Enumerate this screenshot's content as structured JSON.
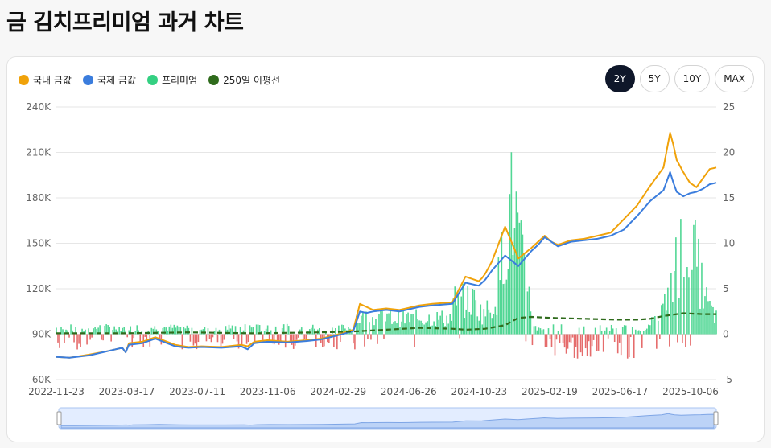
{
  "page": {
    "title": "금 김치프리미엄 과거 차트"
  },
  "legend": [
    {
      "label": "국내 금값",
      "color": "#f0a20a"
    },
    {
      "label": "국제 금값",
      "color": "#3b7ddd"
    },
    {
      "label": "프리미엄",
      "color": "#34d082"
    },
    {
      "label": "250일 이평선",
      "color": "#2f6b1c"
    }
  ],
  "range_buttons": [
    {
      "label": "2Y",
      "active": true
    },
    {
      "label": "5Y",
      "active": false
    },
    {
      "label": "10Y",
      "active": false
    },
    {
      "label": "MAX",
      "active": false
    }
  ],
  "chart_data": {
    "type": "line",
    "grid": true,
    "legend_position": "top-left",
    "y_left": {
      "ticks": [
        "240K",
        "210K",
        "180K",
        "150K",
        "120K",
        "90K",
        "60K"
      ],
      "range": [
        60000,
        240000
      ]
    },
    "y_right": {
      "ticks": [
        "25",
        "20",
        "15",
        "10",
        "5",
        "0",
        "-5"
      ],
      "range": [
        -5,
        25
      ]
    },
    "x_ticks": [
      "2022-11-23",
      "2023-03-17",
      "2023-07-11",
      "2023-11-06",
      "2024-02-29",
      "2024-06-26",
      "2024-10-23",
      "2025-02-19",
      "2025-06-17",
      "2025-10-06"
    ],
    "series": [
      {
        "name": "국내 금값",
        "color": "#f0a20a",
        "axis": "left",
        "x": [
          0,
          0.02,
          0.05,
          0.08,
          0.1,
          0.105,
          0.11,
          0.13,
          0.15,
          0.18,
          0.2,
          0.22,
          0.25,
          0.28,
          0.29,
          0.3,
          0.32,
          0.35,
          0.38,
          0.4,
          0.42,
          0.45,
          0.46,
          0.47,
          0.48,
          0.5,
          0.52,
          0.55,
          0.57,
          0.6,
          0.62,
          0.64,
          0.645,
          0.65,
          0.66,
          0.68,
          0.7,
          0.72,
          0.73,
          0.74,
          0.75,
          0.76,
          0.78,
          0.8,
          0.82,
          0.84,
          0.86,
          0.88,
          0.9,
          0.92,
          0.93,
          0.935,
          0.94,
          0.95,
          0.96,
          0.97,
          0.98,
          0.99,
          1.0
        ],
        "y": [
          75000,
          74500,
          76500,
          79000,
          81000,
          78000,
          84000,
          85000,
          88000,
          83000,
          81500,
          82000,
          81500,
          83000,
          82000,
          85000,
          86000,
          85000,
          86000,
          87000,
          89000,
          93000,
          110000,
          108000,
          106000,
          107000,
          106000,
          109000,
          110000,
          111000,
          128000,
          125000,
          127000,
          130000,
          138000,
          161000,
          140000,
          147000,
          151000,
          155000,
          151000,
          149000,
          152000,
          153000,
          155000,
          157000,
          166000,
          175000,
          188000,
          200000,
          223000,
          215000,
          205000,
          197000,
          190000,
          187000,
          193000,
          199000,
          200000
        ]
      },
      {
        "name": "국제 금값",
        "color": "#3b7ddd",
        "axis": "left",
        "x": [
          0,
          0.02,
          0.05,
          0.08,
          0.1,
          0.105,
          0.11,
          0.13,
          0.15,
          0.18,
          0.2,
          0.22,
          0.25,
          0.28,
          0.29,
          0.3,
          0.32,
          0.35,
          0.38,
          0.4,
          0.42,
          0.45,
          0.46,
          0.47,
          0.48,
          0.5,
          0.52,
          0.55,
          0.57,
          0.6,
          0.62,
          0.64,
          0.645,
          0.65,
          0.66,
          0.68,
          0.7,
          0.72,
          0.73,
          0.74,
          0.75,
          0.76,
          0.78,
          0.8,
          0.82,
          0.84,
          0.86,
          0.88,
          0.9,
          0.92,
          0.93,
          0.935,
          0.94,
          0.95,
          0.96,
          0.97,
          0.98,
          0.99,
          1.0
        ],
        "y": [
          75000,
          74500,
          76000,
          79000,
          81000,
          78000,
          83000,
          84000,
          87000,
          82000,
          81000,
          81500,
          81000,
          82000,
          80000,
          84000,
          85000,
          84500,
          85500,
          86500,
          88500,
          92000,
          105000,
          104000,
          105000,
          106000,
          105000,
          108000,
          109000,
          110000,
          124000,
          122000,
          124000,
          126000,
          132000,
          142000,
          135000,
          145000,
          149000,
          154000,
          151000,
          148000,
          151000,
          152000,
          153000,
          155000,
          159000,
          168000,
          178000,
          185000,
          197000,
          190000,
          184000,
          181000,
          183000,
          184000,
          186000,
          189000,
          190000
        ]
      },
      {
        "name": "250일 이평선",
        "color": "#2f6b1c",
        "axis": "right",
        "x": [
          0,
          0.1,
          0.2,
          0.3,
          0.4,
          0.45,
          0.5,
          0.55,
          0.6,
          0.62,
          0.65,
          0.68,
          0.7,
          0.72,
          0.75,
          0.8,
          0.85,
          0.88,
          0.9,
          0.92,
          0.95,
          0.98,
          1.0
        ],
        "y": [
          0.1,
          0.1,
          0.2,
          0.1,
          0.2,
          0.3,
          0.5,
          0.7,
          0.6,
          0.5,
          0.6,
          1.0,
          1.8,
          1.9,
          1.8,
          1.7,
          1.6,
          1.6,
          1.7,
          2.0,
          2.3,
          2.2,
          2.2
        ]
      }
    ],
    "premium_bars": {
      "name": "프리미엄",
      "color": "#34d082",
      "negative_color": "#e05252",
      "axis": "right"
    }
  }
}
